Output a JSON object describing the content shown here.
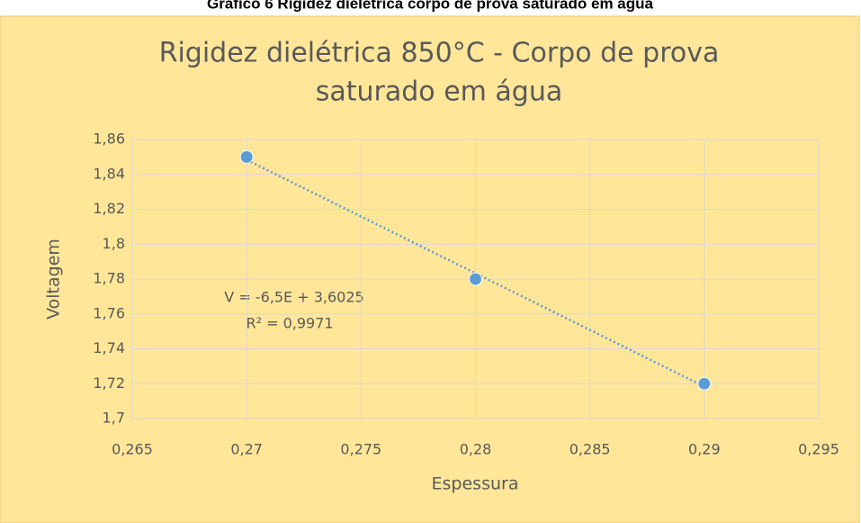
{
  "caption": "Gráfico 6 Rigidez dielétrica corpo de prova saturado em água",
  "chart_data": {
    "type": "scatter",
    "title": [
      "Rigidez dielétrica 850°C - Corpo de prova",
      "saturado em água"
    ],
    "x_label": "Espessura",
    "y_label": "Voltagem",
    "series": [
      {
        "name": "Voltagem",
        "color": "#5b9bd5",
        "x": [
          0.27,
          0.28,
          0.29
        ],
        "values": [
          1.85,
          1.78,
          1.72
        ]
      }
    ],
    "trendline": {
      "type": "linear",
      "color": "#5b9bd5",
      "style": "dotted"
    },
    "annotations": [
      "V = -6,5E + 3,6025",
      "R² = 0,9971"
    ],
    "xlim": [
      0.265,
      0.295
    ],
    "xticks": [
      {
        "value": 0.265,
        "label": "0,265"
      },
      {
        "value": 0.27,
        "label": "0,27"
      },
      {
        "value": 0.275,
        "label": "0,275"
      },
      {
        "value": 0.28,
        "label": "0,28"
      },
      {
        "value": 0.285,
        "label": "0,285"
      },
      {
        "value": 0.29,
        "label": "0,29"
      },
      {
        "value": 0.295,
        "label": "0,295"
      }
    ],
    "ylim": [
      1.7,
      1.86
    ],
    "yticks": [
      {
        "value": 1.7,
        "label": "1,7"
      },
      {
        "value": 1.72,
        "label": "1,72"
      },
      {
        "value": 1.74,
        "label": "1,74"
      },
      {
        "value": 1.76,
        "label": "1,76"
      },
      {
        "value": 1.78,
        "label": "1,78"
      },
      {
        "value": 1.8,
        "label": "1,8"
      },
      {
        "value": 1.82,
        "label": "1,82"
      },
      {
        "value": 1.84,
        "label": "1,84"
      },
      {
        "value": 1.86,
        "label": "1,86"
      }
    ],
    "grid": true
  }
}
